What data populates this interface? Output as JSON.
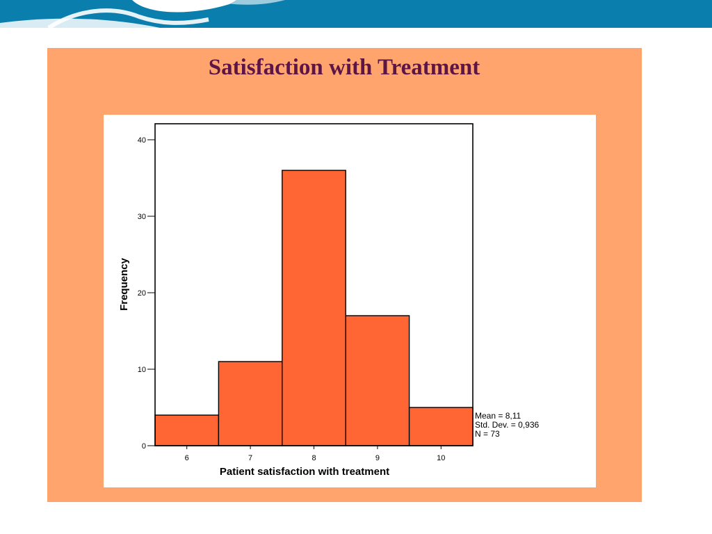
{
  "slide": {
    "title": "Satisfaction with Treatment",
    "colors": {
      "banner": "#0a7fad",
      "panel": "#ffa46c",
      "bar": "#ff6633",
      "title": "#5c1545"
    }
  },
  "chart_data": {
    "type": "bar",
    "categories": [
      "6",
      "7",
      "8",
      "9",
      "10"
    ],
    "values": [
      4,
      11,
      36,
      17,
      5
    ],
    "xlabel": "Patient satisfaction with treatment",
    "ylabel": "Frequency",
    "ylim": [
      0,
      42
    ],
    "yticks": [
      0,
      10,
      20,
      30,
      40
    ],
    "grid": false,
    "stats": [
      "Mean = 8,11",
      "Std. Dev. = 0,936",
      "N = 73"
    ]
  }
}
